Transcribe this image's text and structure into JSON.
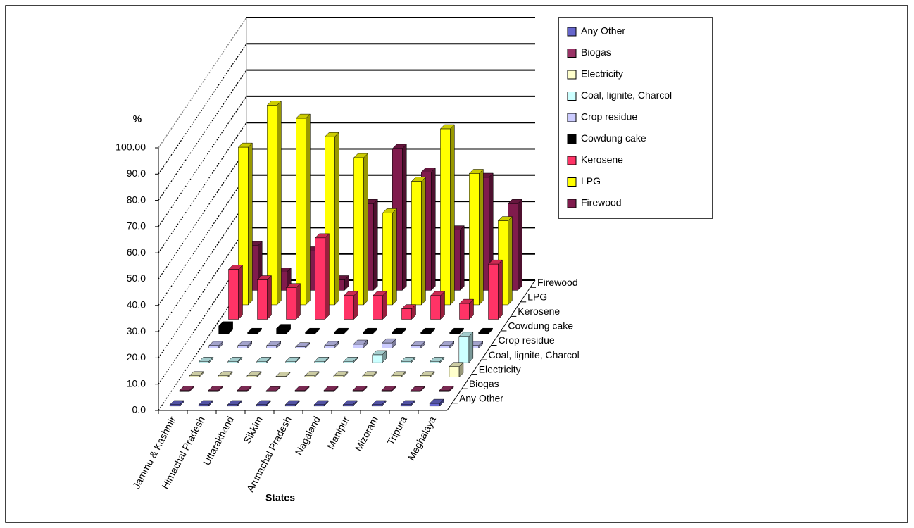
{
  "chart_data": {
    "type": "bar3d",
    "y_label": "%",
    "x_label": "States",
    "categories": [
      "Jammu & Kashmir",
      "Himachal Pradesh",
      "Uttarakhand",
      "Sikkim",
      "Arunachal Pradesh",
      "Nagaland",
      "Manipur",
      "Mizoram",
      "Tripura",
      "Meghalaya"
    ],
    "series": [
      {
        "name": "Any Other",
        "color": "#6666cc",
        "values": [
          0.5,
          0.5,
          0.5,
          0.5,
          0.5,
          0.5,
          0.5,
          0.5,
          0.5,
          1
        ]
      },
      {
        "name": "Biogas",
        "color": "#993366",
        "values": [
          0.5,
          0.5,
          0.5,
          0.3,
          0.5,
          0.5,
          0.5,
          0.5,
          0.3,
          0.5
        ]
      },
      {
        "name": "Electricity",
        "color": "#ffffcc",
        "values": [
          0.5,
          0.5,
          0.5,
          0.3,
          0.5,
          0.5,
          0.5,
          0.5,
          0.5,
          4
        ]
      },
      {
        "name": "Coal, lignite, Charcol",
        "color": "#ccffff",
        "values": [
          0.5,
          0.5,
          0.5,
          0.5,
          0.5,
          0.5,
          3,
          0.5,
          0.5,
          10
        ]
      },
      {
        "name": "Crop residue",
        "color": "#ccccff",
        "values": [
          1,
          1,
          1,
          0.5,
          1,
          1.5,
          2,
          1,
          1,
          1
        ]
      },
      {
        "name": "Cowdung cake",
        "color": "#000000",
        "values": [
          3,
          0.5,
          2,
          0.5,
          0.5,
          0.5,
          0.5,
          0.5,
          0.5,
          0.5
        ]
      },
      {
        "name": "Kerosene",
        "color": "#ff3366",
        "values": [
          19,
          15,
          12,
          31,
          9,
          9,
          4,
          9,
          6,
          21
        ]
      },
      {
        "name": "LPG",
        "color": "#ffff00",
        "values": [
          60,
          76,
          71,
          64,
          56,
          35,
          47,
          67,
          50,
          32
        ]
      },
      {
        "name": "Firewood",
        "color": "#801b4d",
        "values": [
          17,
          7,
          15,
          4,
          33,
          54,
          45,
          23,
          43,
          33
        ]
      }
    ],
    "ylim": [
      0,
      100
    ],
    "yticks": [
      {
        "value": 0,
        "label": "0.0"
      },
      {
        "value": 10,
        "label": "10.0"
      },
      {
        "value": 20,
        "label": "20.0"
      },
      {
        "value": 30,
        "label": "30.0"
      },
      {
        "value": 40,
        "label": "40.0"
      },
      {
        "value": 50,
        "label": "50.0"
      },
      {
        "value": 60,
        "label": "60.0"
      },
      {
        "value": 70,
        "label": "70.0"
      },
      {
        "value": 80,
        "label": "80.0"
      },
      {
        "value": 90,
        "label": "90.0"
      },
      {
        "value": 100,
        "label": "100.00"
      }
    ],
    "grid": true,
    "legend": "top-right"
  }
}
